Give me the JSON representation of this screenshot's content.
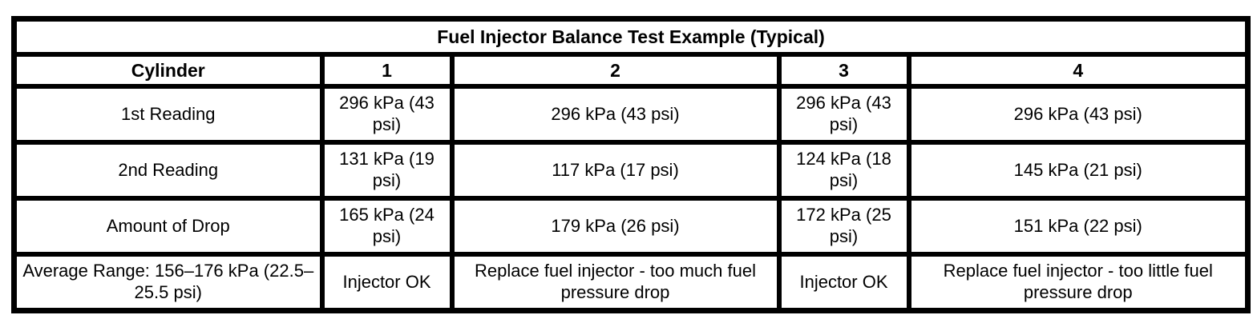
{
  "page": {
    "background_color": "#ffffff",
    "text_color": "#000000",
    "border_color": "#000000"
  },
  "table": {
    "title": "Fuel Injector Balance Test Example (Typical)",
    "header": [
      "Cylinder",
      "1",
      "2",
      "3",
      "4"
    ],
    "rows": [
      {
        "label": "1st Reading",
        "values": [
          "296 kPa (43 psi)",
          "296 kPa (43 psi)",
          "296 kPa (43 psi)",
          "296 kPa (43 psi)"
        ]
      },
      {
        "label": "2nd Reading",
        "values": [
          "131 kPa (19 psi)",
          "117 kPa (17 psi)",
          "124 kPa (18 psi)",
          "145 kPa (21 psi)"
        ]
      },
      {
        "label": "Amount of Drop",
        "values": [
          "165 kPa (24 psi)",
          "179 kPa (26 psi)",
          "172 kPa (25 psi)",
          "151 kPa (22 psi)"
        ]
      },
      {
        "label": "Average Range: 156–176 kPa (22.5–25.5 psi)",
        "values": [
          "Injector OK",
          "Replace fuel injector - too much fuel pressure drop",
          "Injector OK",
          "Replace fuel injector - too little fuel pressure drop"
        ]
      }
    ]
  }
}
